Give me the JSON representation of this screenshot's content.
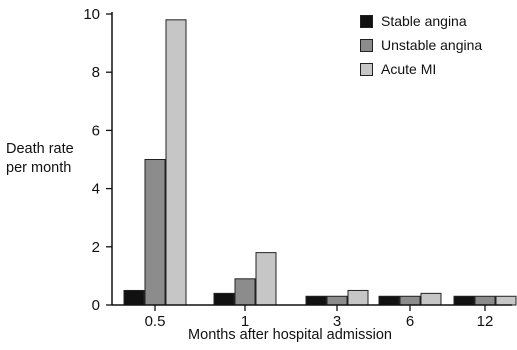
{
  "chart_data": {
    "type": "bar",
    "xlabel": "Months after hospital admission",
    "ylabel_lines": [
      "Death rate",
      "per month"
    ],
    "categories": [
      "0.5",
      "1",
      "3",
      "6",
      "12"
    ],
    "ylim": [
      0,
      10
    ],
    "yticks": [
      "0",
      "2",
      "4",
      "6",
      "8",
      "10"
    ],
    "series": [
      {
        "name": "Stable angina",
        "color": "#111111",
        "values": [
          0.5,
          0.4,
          0.3,
          0.3,
          0.3
        ]
      },
      {
        "name": "Unstable angina",
        "color": "#8c8c8c",
        "values": [
          5.0,
          0.9,
          0.3,
          0.3,
          0.3
        ]
      },
      {
        "name": "Acute MI",
        "color": "#c6c6c6",
        "values": [
          9.8,
          1.8,
          0.5,
          0.4,
          0.3
        ]
      }
    ],
    "legend_position": "top-right",
    "grid": false
  }
}
